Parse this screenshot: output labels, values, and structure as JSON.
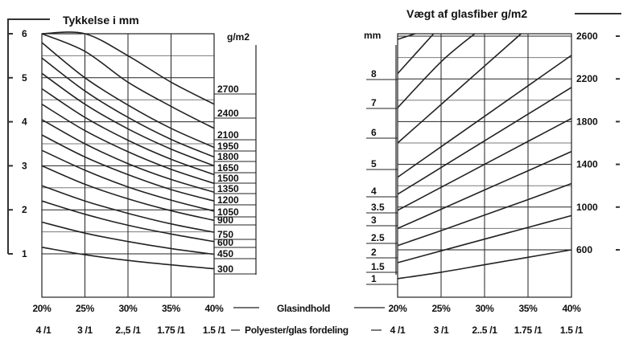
{
  "chart_data": [
    {
      "type": "line",
      "title": "Tykkelse i mm",
      "xlabel": "Glasindhold",
      "xlabel2": "Polyester/glas fordeling",
      "ylabel": "",
      "curve_unit_label": "g/m2",
      "x_ticks": [
        "20%",
        "25%",
        "30%",
        "35%",
        "40%"
      ],
      "x_ticks2": [
        "4 /1",
        "3 /1",
        "2.,5 /1",
        "1.75 /1",
        "1.5 /1"
      ],
      "y_ticks": [
        "6",
        "5",
        "4",
        "3",
        "2",
        "1"
      ],
      "xlim": [
        20,
        40
      ],
      "ylim": [
        0.6,
        6
      ],
      "grid": true,
      "x": [
        20,
        25,
        30,
        35,
        40
      ],
      "series": [
        {
          "name": "300",
          "values": [
            1.15,
            0.98,
            0.85,
            0.75,
            0.66
          ]
        },
        {
          "name": "450",
          "values": [
            1.72,
            1.47,
            1.28,
            1.12,
            0.99
          ]
        },
        {
          "name": "600",
          "values": [
            2.2,
            1.9,
            1.65,
            1.45,
            1.28
          ]
        },
        {
          "name": "750",
          "values": [
            2.55,
            2.2,
            1.92,
            1.68,
            1.49
          ]
        },
        {
          "name": "900",
          "values": [
            3.0,
            2.58,
            2.25,
            1.98,
            1.76
          ]
        },
        {
          "name": "1050",
          "values": [
            3.35,
            2.9,
            2.52,
            2.22,
            1.97
          ]
        },
        {
          "name": "1200",
          "values": [
            3.7,
            3.2,
            2.8,
            2.46,
            2.2
          ]
        },
        {
          "name": "1350",
          "values": [
            4.05,
            3.5,
            3.05,
            2.69,
            2.4
          ]
        },
        {
          "name": "1500",
          "values": [
            4.4,
            3.8,
            3.32,
            2.92,
            2.6
          ]
        },
        {
          "name": "1650",
          "values": [
            4.75,
            4.1,
            3.58,
            3.15,
            2.8
          ]
        },
        {
          "name": "1800",
          "values": [
            5.1,
            4.4,
            3.84,
            3.38,
            3.0
          ]
        },
        {
          "name": "1950",
          "values": [
            5.45,
            4.7,
            4.1,
            3.6,
            3.2
          ]
        },
        {
          "name": "2100",
          "values": [
            5.8,
            5.0,
            4.38,
            3.85,
            3.42
          ]
        },
        {
          "name": "2400",
          "values": [
            6.0,
            5.6,
            4.9,
            4.35,
            3.85
          ]
        },
        {
          "name": "2700",
          "values": [
            6.0,
            6.0,
            5.5,
            4.9,
            4.4
          ]
        }
      ]
    },
    {
      "type": "line",
      "title": "Vægt af glasfiber g/m2",
      "xlabel": "Glasindhold",
      "xlabel2": "Polyester/glas fordeling",
      "curve_unit_label": "mm",
      "x_ticks": [
        "20%",
        "25%",
        "30%",
        "35%",
        "40%"
      ],
      "x_ticks2": [
        "4 /1",
        "3 /1",
        "2..5 /1",
        "1.75 /1",
        "1.5 /1"
      ],
      "y_ticks": [
        "2600",
        "2200",
        "1800",
        "1400",
        "1000",
        "600"
      ],
      "xlim": [
        20,
        40
      ],
      "ylim": [
        250,
        2700
      ],
      "grid": true,
      "x": [
        20,
        25,
        30,
        35,
        40
      ],
      "series": [
        {
          "name": "1",
          "values": [
            330,
            390,
            460,
            530,
            600
          ]
        },
        {
          "name": "1.5",
          "values": [
            480,
            590,
            700,
            810,
            920
          ]
        },
        {
          "name": "2",
          "values": [
            640,
            780,
            925,
            1070,
            1220
          ]
        },
        {
          "name": "2.5",
          "values": [
            800,
            980,
            1160,
            1340,
            1520
          ]
        },
        {
          "name": "3",
          "values": [
            970,
            1185,
            1400,
            1615,
            1830
          ]
        },
        {
          "name": "3.5",
          "values": [
            1120,
            1370,
            1620,
            1870,
            2120
          ]
        },
        {
          "name": "4",
          "values": [
            1280,
            1565,
            1850,
            2135,
            2420
          ]
        },
        {
          "name": "5",
          "values": [
            1600,
            1960,
            2320,
            2680,
            2700
          ]
        },
        {
          "name": "6",
          "values": [
            1930,
            2360,
            2700,
            2700,
            2700
          ]
        },
        {
          "name": "7",
          "values": [
            2250,
            2700,
            2700,
            2700,
            2700
          ]
        },
        {
          "name": "8",
          "values": [
            2570,
            2700,
            2700,
            2700,
            2700
          ]
        }
      ]
    }
  ]
}
